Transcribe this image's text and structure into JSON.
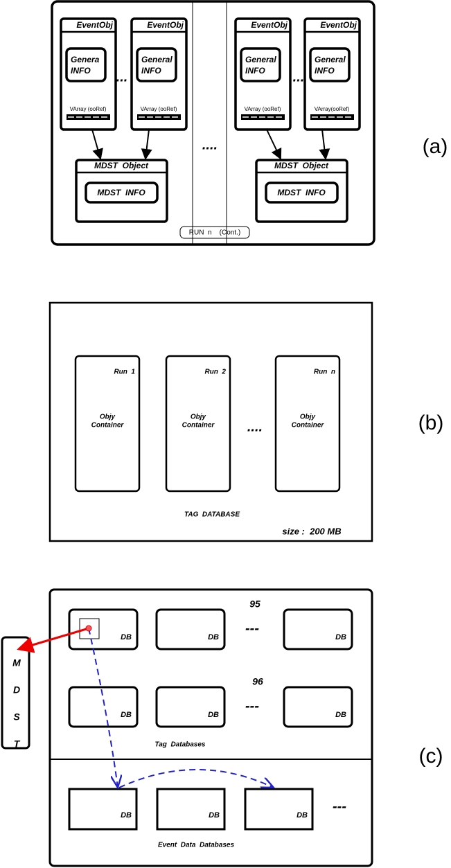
{
  "panel_a": {
    "label": "(a)",
    "runs": [
      {
        "events": [
          {
            "title": "EventObj",
            "info": [
              "Genera",
              "INFO"
            ],
            "varray": "VArray (ooRef)"
          },
          {
            "title": "EventObj",
            "info": [
              "General",
              "INFO"
            ],
            "varray": "VArray (ooRef)"
          }
        ],
        "dots": "...",
        "mdst": {
          "title": "MDST  Object",
          "info": "MDST  INFO"
        }
      },
      {
        "events": [
          {
            "title": "EventObj",
            "info": [
              "General",
              "INFO"
            ],
            "varray": "VArray (ooRef)"
          },
          {
            "title": "EventObj",
            "info": [
              "General",
              "INFO"
            ],
            "varray": "VArray(ooRef)"
          }
        ],
        "dots": "...",
        "mdst": {
          "title": "MDST  Object",
          "info": "MDST  INFO"
        }
      }
    ],
    "between": "....",
    "run_label": "RUN  n    (Cont.)"
  },
  "panel_b": {
    "label": "(b)",
    "runs": [
      {
        "name": "Run  1",
        "content": [
          "Objy",
          "Container"
        ]
      },
      {
        "name": "Run  2",
        "content": [
          "Objy",
          "Container"
        ]
      },
      {
        "name": "Run  n",
        "content": [
          "Objy",
          "Container"
        ]
      }
    ],
    "dots": "....",
    "caption": "TAG  DATABASE",
    "size": "size :  200 MB"
  },
  "panel_c": {
    "label": "(c)",
    "tag_groups": [
      {
        "label": "95",
        "dbs": [
          "DB",
          "DB",
          "DB"
        ],
        "dots": "---"
      },
      {
        "label": "96",
        "dbs": [
          "DB",
          "DB",
          "DB"
        ],
        "dots": "---"
      }
    ],
    "tag_caption": "Tag  Databases",
    "event_dbs": [
      "DB",
      "DB",
      "DB"
    ],
    "event_dots": "---",
    "event_caption": "Event  Data  Databases",
    "mdst_letters": [
      "M",
      "D",
      "S",
      "T"
    ]
  }
}
